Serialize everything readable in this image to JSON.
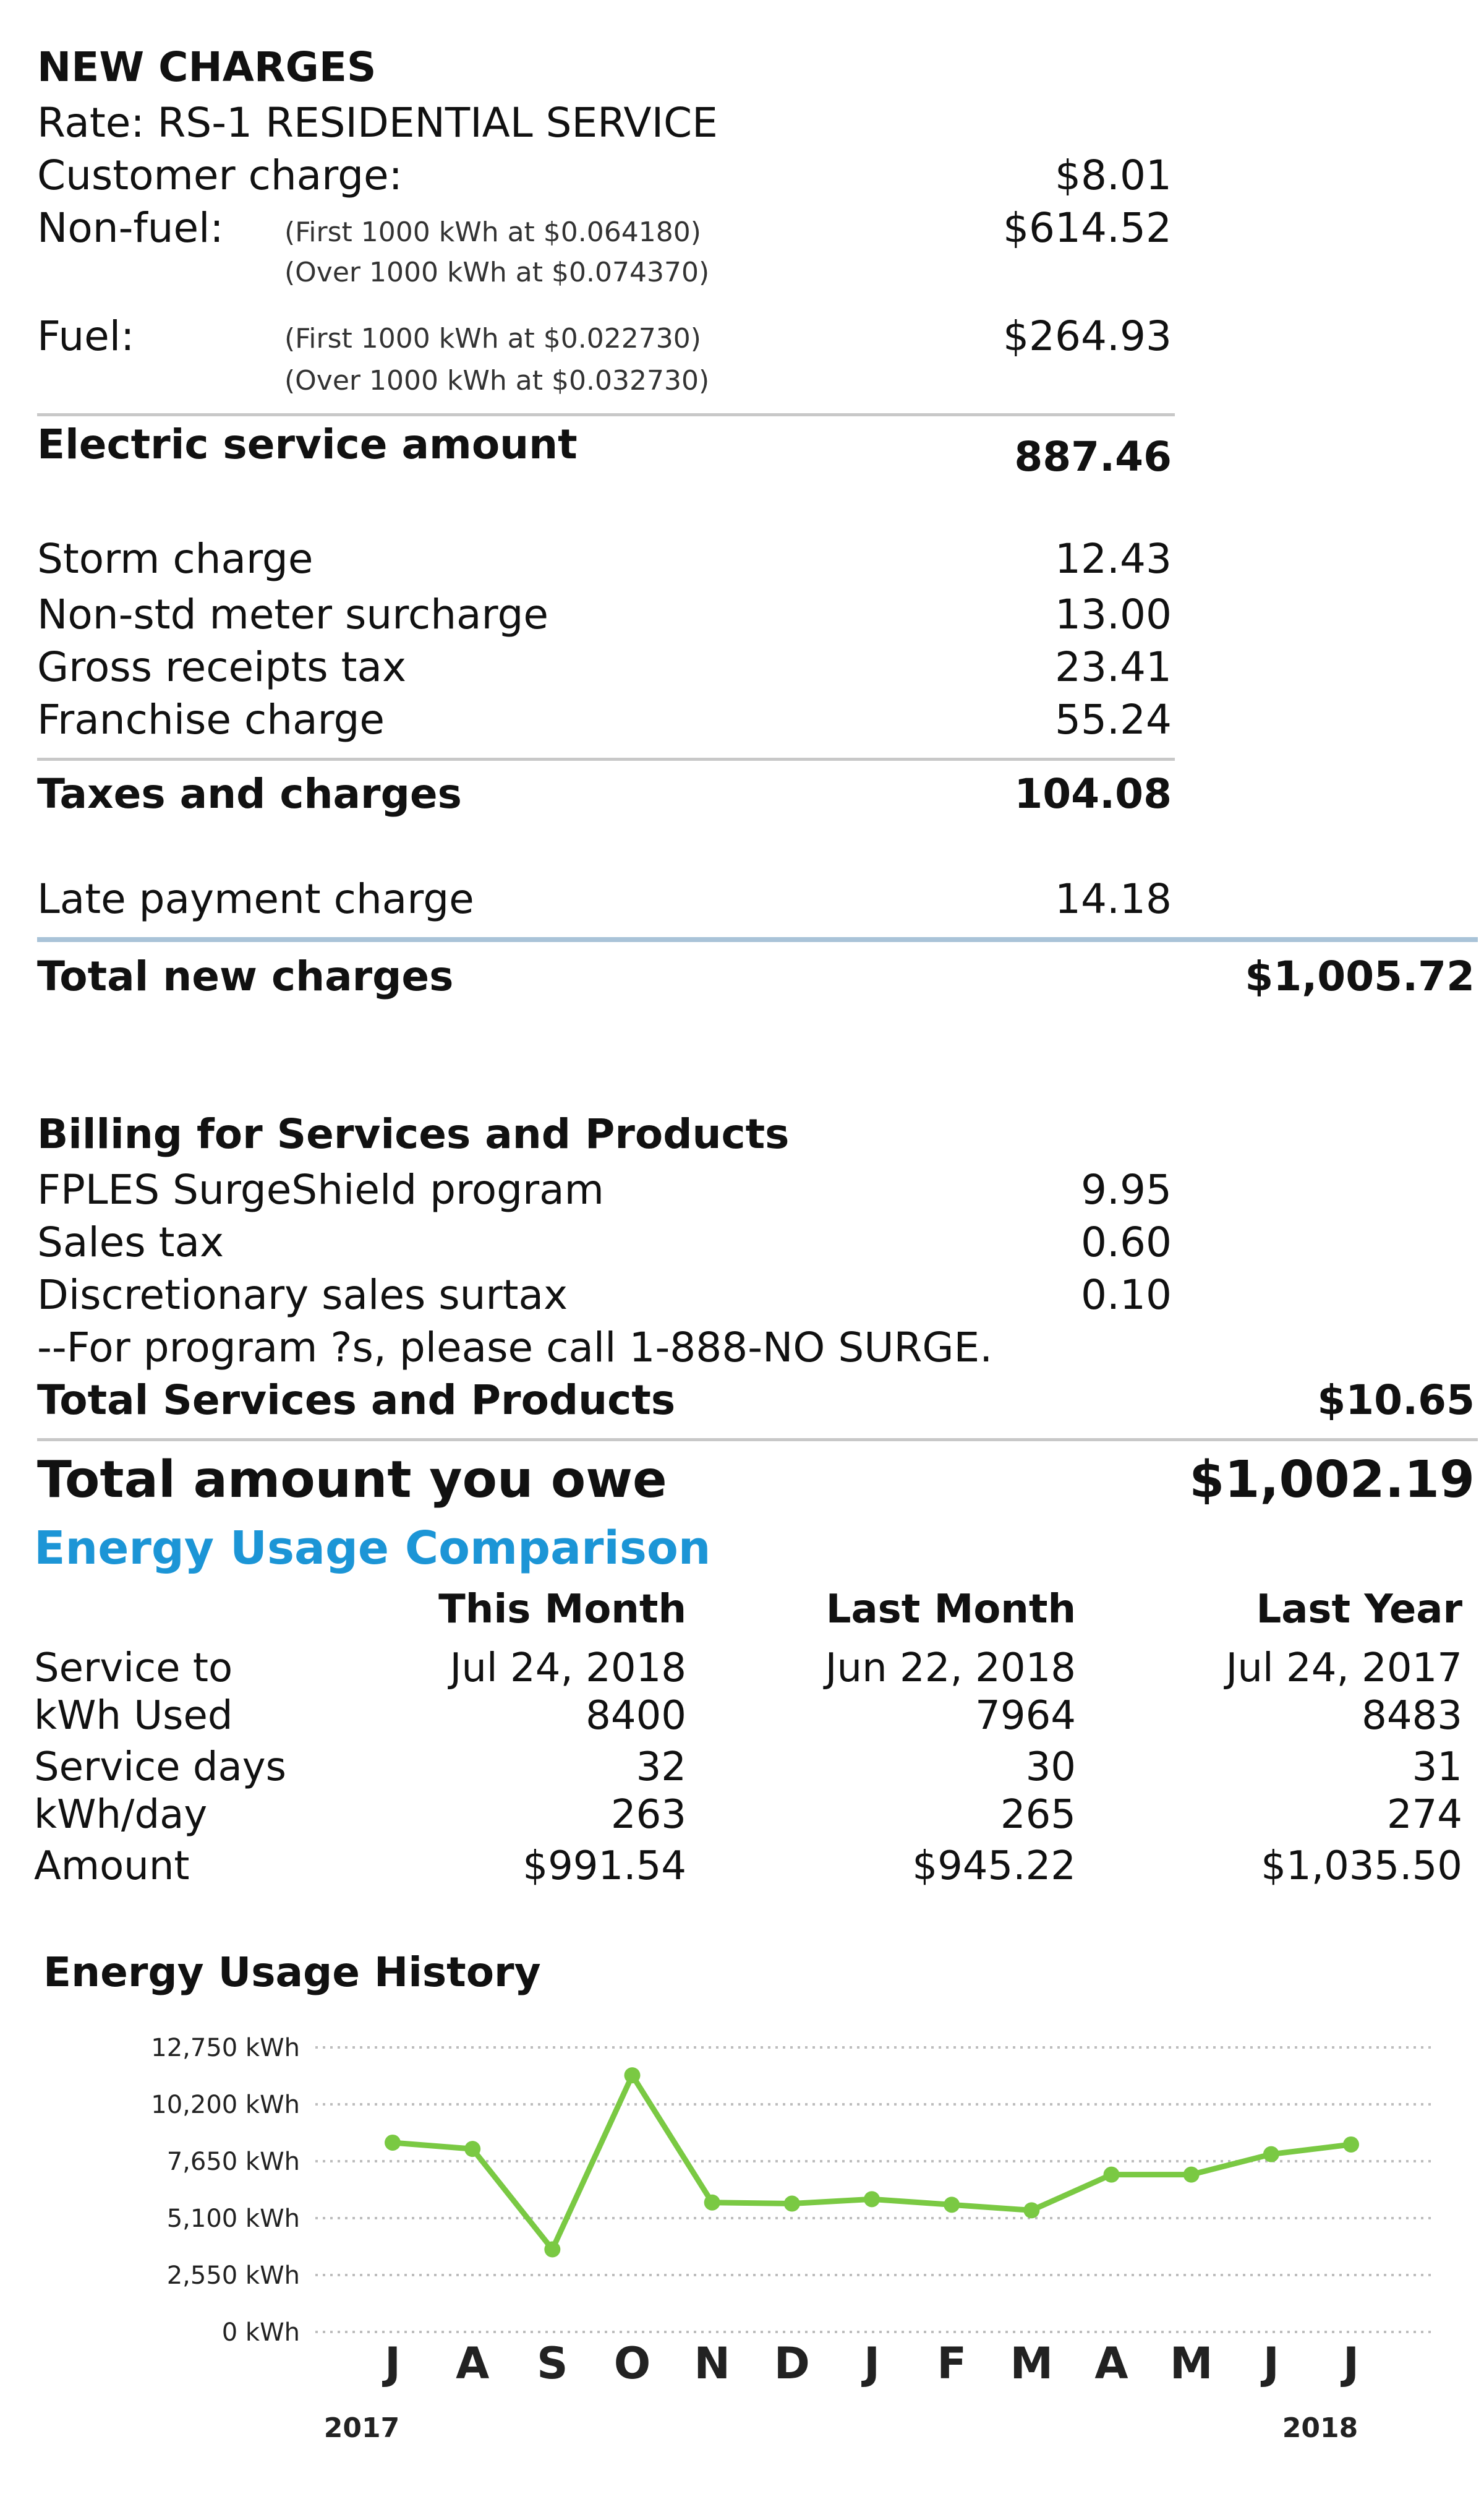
{
  "new_charges": {
    "heading": "NEW CHARGES",
    "rate": "Rate: RS-1 RESIDENTIAL SERVICE",
    "customer_charge": {
      "label": "Customer charge:",
      "amount": "$8.01"
    },
    "non_fuel": {
      "label": "Non-fuel:",
      "detail1": "(First 1000 kWh at $0.064180)",
      "detail2": "(Over 1000 kWh at $0.074370)",
      "amount": "$614.52"
    },
    "fuel": {
      "label": "Fuel:",
      "detail1": "(First 1000 kWh at $0.022730)",
      "detail2": "(Over 1000 kWh at $0.032730)",
      "amount": "$264.93"
    },
    "electric_service": {
      "label": "Electric service amount",
      "amount": "887.46"
    },
    "items": [
      {
        "label": "Storm charge",
        "amount": "12.43"
      },
      {
        "label": "Non-std meter surcharge",
        "amount": "13.00"
      },
      {
        "label": "Gross receipts tax",
        "amount": "23.41"
      },
      {
        "label": "Franchise charge",
        "amount": "55.24"
      }
    ],
    "taxes_total": {
      "label": "Taxes and charges",
      "amount": "104.08"
    },
    "late_payment": {
      "label": "Late payment charge",
      "amount": "14.18"
    },
    "total_new": {
      "label": "Total new charges",
      "amount": "$1,005.72"
    }
  },
  "services": {
    "heading": "Billing for Services and Products",
    "items": [
      {
        "label": "FPLES SurgeShield program",
        "amount": "9.95"
      },
      {
        "label": "Sales tax",
        "amount": "0.60"
      },
      {
        "label": "Discretionary sales surtax",
        "amount": "0.10"
      }
    ],
    "note": "--For program ?s, please call 1-888-NO SURGE.",
    "total": {
      "label": "Total Services and Products",
      "amount": "$10.65"
    }
  },
  "total_owe": {
    "label": "Total amount you owe",
    "amount": "$1,002.19"
  },
  "comparison": {
    "heading": "Energy Usage Comparison",
    "columns": [
      "This Month",
      "Last Month",
      "Last Year"
    ],
    "rows": [
      {
        "label": "Service to",
        "values": [
          "Jul 24, 2018",
          "Jun 22, 2018",
          "Jul 24, 2017"
        ]
      },
      {
        "label": "kWh Used",
        "values": [
          "8400",
          "7964",
          "8483"
        ]
      },
      {
        "label": "Service days",
        "values": [
          "32",
          "30",
          "31"
        ]
      },
      {
        "label": "kWh/day",
        "values": [
          "263",
          "265",
          "274"
        ]
      },
      {
        "label": "Amount",
        "values": [
          "$991.54",
          "$945.22",
          "$1,035.50"
        ]
      }
    ]
  },
  "history": {
    "heading": "Energy Usage History"
  },
  "chart_data": {
    "type": "line",
    "title": "Energy Usage History",
    "categories": [
      "J",
      "A",
      "S",
      "O",
      "N",
      "D",
      "J",
      "F",
      "M",
      "A",
      "M",
      "J",
      "J"
    ],
    "year_labels": [
      {
        "label": "2017",
        "index": 0
      },
      {
        "label": "2018",
        "index": 12
      }
    ],
    "ytick_labels": [
      "12,750 kWh",
      "10,200 kWh",
      "7,650 kWh",
      "5,100 kWh",
      "2,550 kWh",
      "0 kWh"
    ],
    "ylim": [
      0,
      12750
    ],
    "series": [
      {
        "values": [
          8483,
          8200,
          3700,
          11500,
          5800,
          5750,
          5950,
          5700,
          5450,
          7050,
          7050,
          7964,
          8400
        ]
      }
    ],
    "grid": true,
    "line_color": "#7ac943"
  }
}
